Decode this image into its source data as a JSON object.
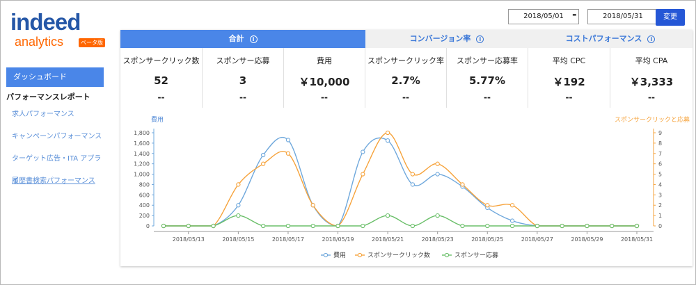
{
  "logo": {
    "word": "indeed",
    "sub": "analytics",
    "badge": "ベータ版"
  },
  "date_range": {
    "start": "2018/05/01",
    "separator": "-",
    "end": "2018/05/31",
    "button": "変更"
  },
  "sidebar": {
    "active": "ダッシュボード",
    "section": "パフォーマンスレポート",
    "links": [
      "求人パフォーマンス",
      "キャンペーンパフォーマンス",
      "ターゲット広告・ITA アプライ",
      "履歴書検索パフォーマンス"
    ]
  },
  "summary": {
    "groups": [
      {
        "title": "合計",
        "info": "i"
      },
      {
        "title": "コンバージョン率",
        "info": "i"
      },
      {
        "title": "コストパフォーマンス",
        "info": "i"
      }
    ],
    "metrics": [
      {
        "label": "スポンサークリック数",
        "value": "52",
        "delta": "--"
      },
      {
        "label": "スポンサー応募",
        "value": "3",
        "delta": "--"
      },
      {
        "label": "費用",
        "value": "￥10,000",
        "delta": "--"
      },
      {
        "label": "スポンサークリック率",
        "value": "2.7%",
        "delta": "--"
      },
      {
        "label": "スポンサー応募率",
        "value": "5.77%",
        "delta": "--"
      },
      {
        "label": "平均 CPC",
        "value": "￥192",
        "delta": "--"
      },
      {
        "label": "平均 CPA",
        "value": "￥3,333",
        "delta": "--"
      }
    ]
  },
  "chart_data": {
    "type": "line",
    "x": [
      "2018/05/12",
      "2018/05/13",
      "2018/05/14",
      "2018/05/15",
      "2018/05/16",
      "2018/05/17",
      "2018/05/18",
      "2018/05/19",
      "2018/05/20",
      "2018/05/21",
      "2018/05/22",
      "2018/05/23",
      "2018/05/24",
      "2018/05/25",
      "2018/05/26",
      "2018/05/27",
      "2018/05/28",
      "2018/05/29",
      "2018/05/30",
      "2018/05/31"
    ],
    "x_tick_labels": [
      "2018/05/13",
      "2018/05/15",
      "2018/05/17",
      "2018/05/19",
      "2018/05/21",
      "2018/05/23",
      "2018/05/25",
      "2018/05/27",
      "2018/05/29",
      "2018/05/31"
    ],
    "ylabel_left": "費用",
    "ylabel_right": "スポンサークリックと応募",
    "ylim_left": [
      0,
      1800
    ],
    "yticks_left": [
      "0",
      "200",
      "400",
      "600",
      "800",
      "1,000",
      "1,200",
      "1,400",
      "1,600",
      "1,800"
    ],
    "ylim_right": [
      0,
      9
    ],
    "yticks_right": [
      "0",
      "1",
      "2",
      "3",
      "4",
      "5",
      "6",
      "7",
      "8",
      "9"
    ],
    "series": [
      {
        "name": "費用",
        "axis": "left",
        "color": "#6fa8dc",
        "values": [
          0,
          0,
          0,
          400,
          1370,
          1660,
          400,
          0,
          1430,
          1650,
          800,
          1000,
          760,
          350,
          100,
          0,
          0,
          0,
          0,
          0
        ]
      },
      {
        "name": "スポンサークリック数",
        "axis": "right",
        "color": "#f6a33c",
        "values": [
          0,
          0,
          0,
          4,
          6,
          7,
          2,
          0,
          5,
          9,
          5,
          6,
          4,
          2,
          2,
          0,
          0,
          0,
          0,
          0
        ]
      },
      {
        "name": "スポンサー応募",
        "axis": "right",
        "color": "#6abf69",
        "values": [
          0,
          0,
          0,
          1,
          0,
          0,
          0,
          0,
          0,
          1,
          0,
          1,
          0,
          0,
          0,
          0,
          0,
          0,
          0,
          0
        ]
      }
    ],
    "legend": "bottom"
  }
}
